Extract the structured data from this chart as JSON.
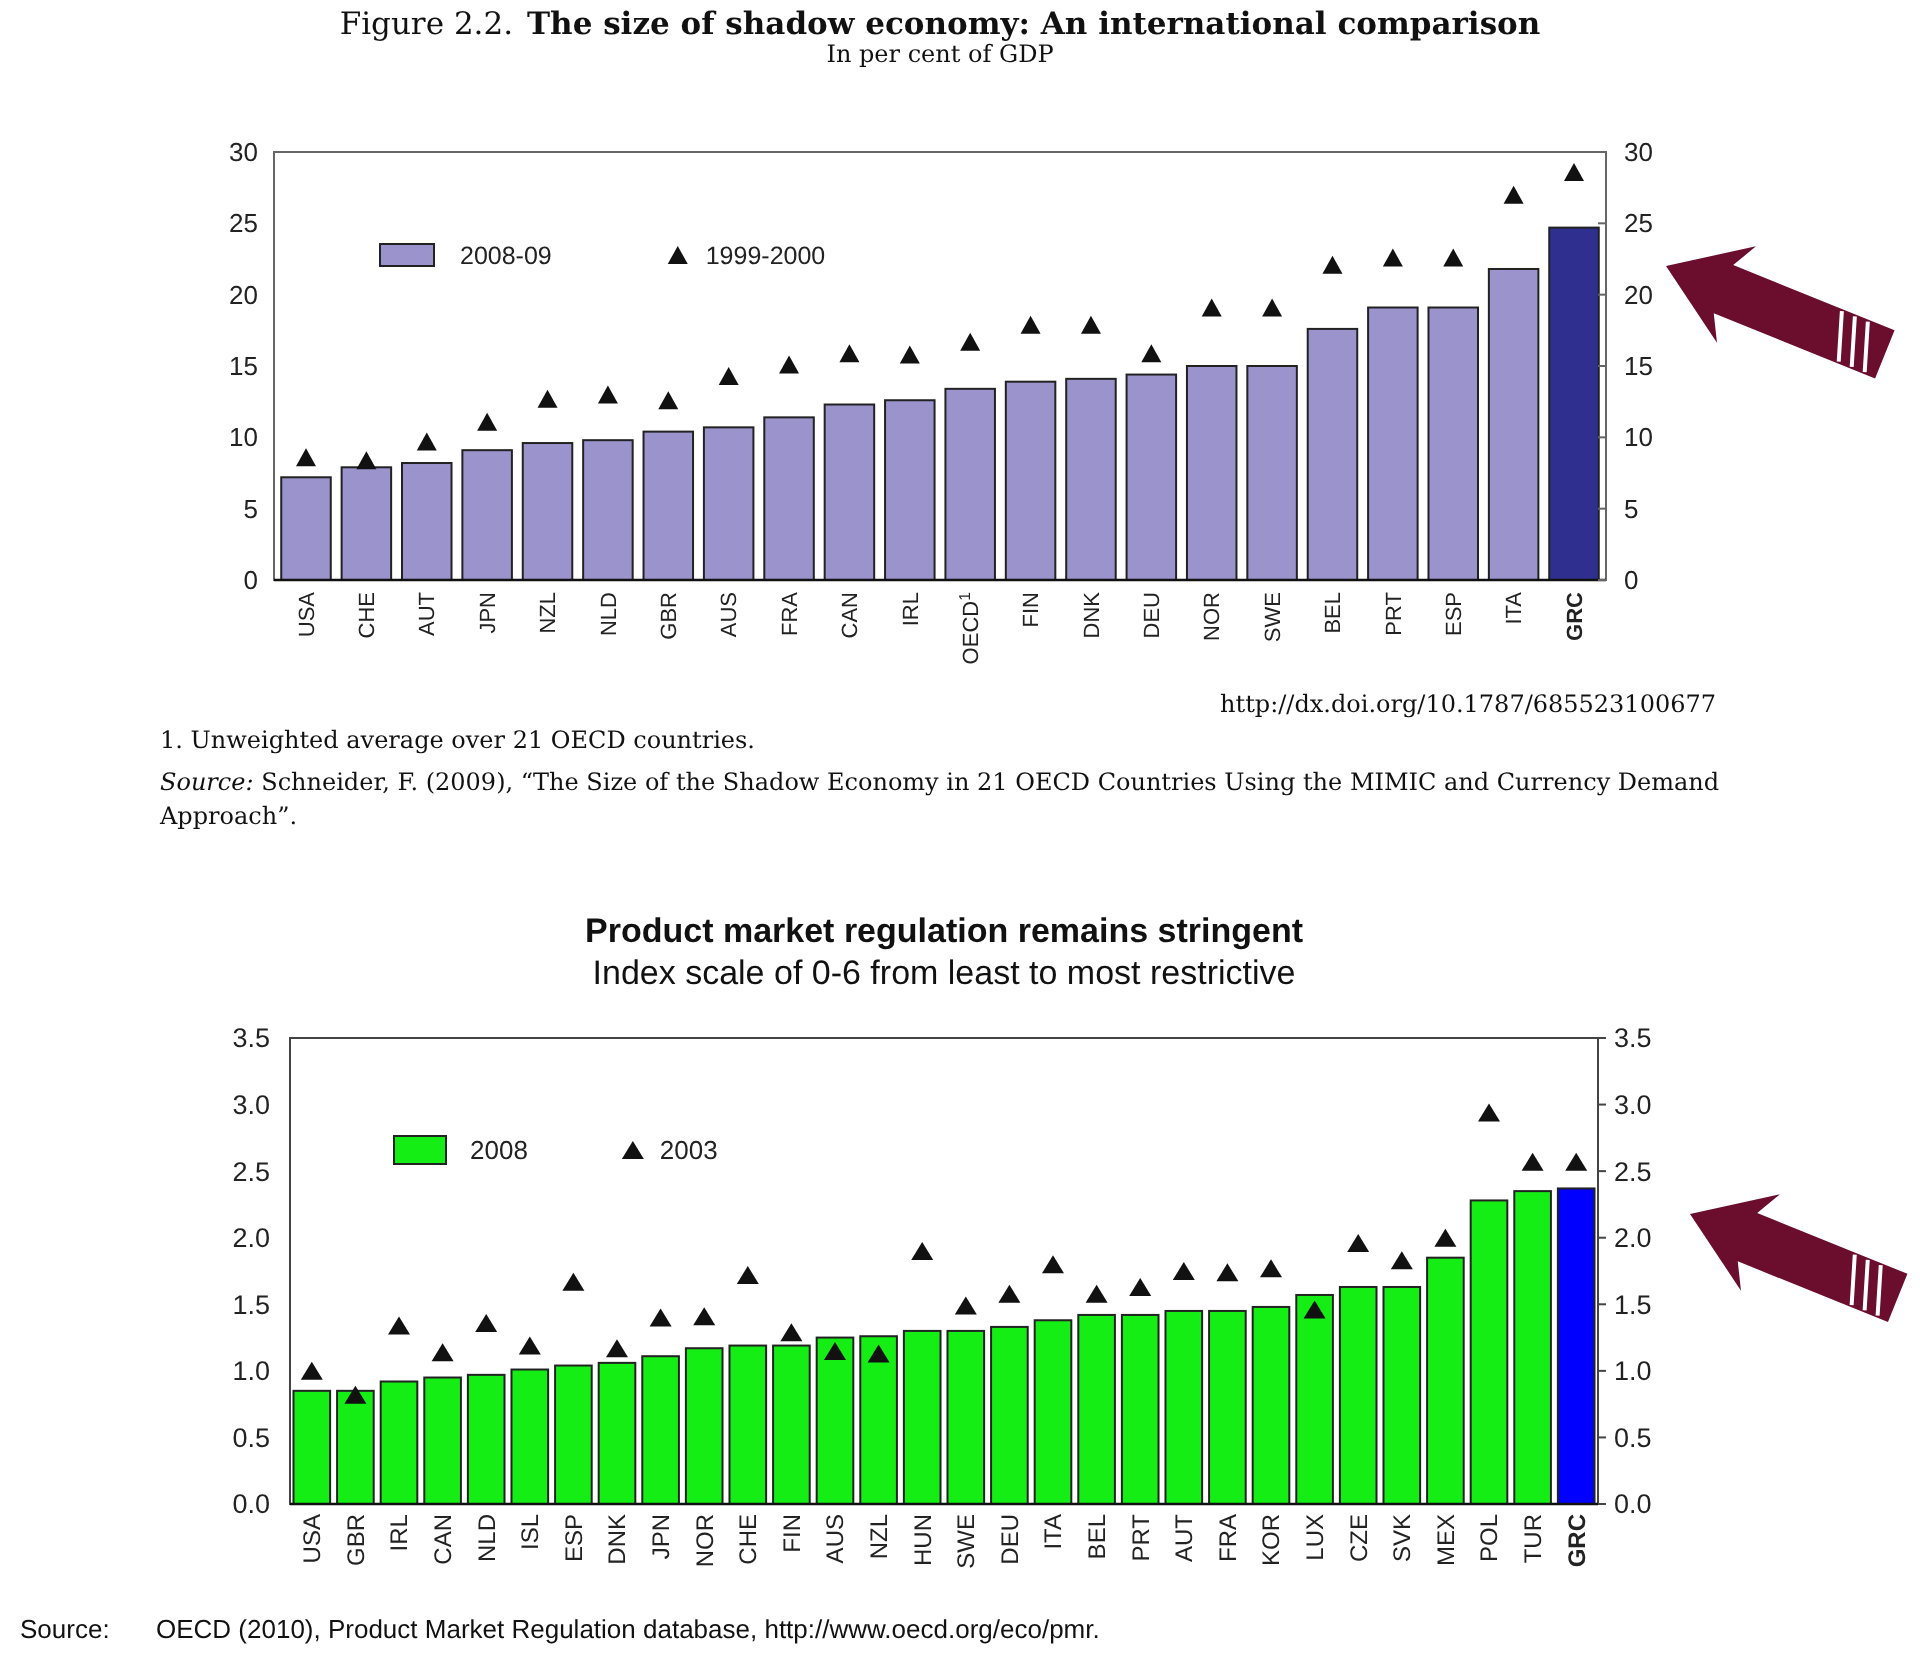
{
  "chart_data": [
    {
      "type": "bar",
      "title": "Figure 2.2. The size of shadow economy: An international comparison",
      "subtitle": "In per cent of GDP",
      "categories": [
        "USA",
        "CHE",
        "AUT",
        "JPN",
        "NZL",
        "NLD",
        "GBR",
        "AUS",
        "FRA",
        "CAN",
        "IRL",
        "OECD$^{1}$",
        "FIN",
        "DNK",
        "DEU",
        "NOR",
        "SWE",
        "BEL",
        "PRT",
        "ESP",
        "ITA",
        "GRC"
      ],
      "series": [
        {
          "name": "2008-09",
          "color": "#9a93cc",
          "colors": [
            "#9a93cc",
            "#9a93cc",
            "#9a93cc",
            "#9a93cc",
            "#9a93cc",
            "#9a93cc",
            "#9a93cc",
            "#9a93cc",
            "#9a93cc",
            "#9a93cc",
            "#9a93cc",
            "#9a93cc",
            "#9a93cc",
            "#9a93cc",
            "#9a93cc",
            "#9a93cc",
            "#9a93cc",
            "#9a93cc",
            "#9a93cc",
            "#9a93cc",
            "#9a93cc",
            "#2f2f8f"
          ],
          "values": [
            7.2,
            7.9,
            8.2,
            9.1,
            9.6,
            9.8,
            10.4,
            10.7,
            11.4,
            12.3,
            12.6,
            13.4,
            13.9,
            14.1,
            14.4,
            15.0,
            15.0,
            17.6,
            19.1,
            19.1,
            21.8,
            24.7
          ]
        },
        {
          "name": "1999-2000",
          "type": "scatter",
          "marker": "triangle",
          "color": "#111111",
          "values": [
            8.6,
            8.4,
            9.7,
            11.1,
            12.7,
            13.0,
            12.6,
            14.3,
            15.1,
            15.9,
            15.8,
            16.7,
            17.9,
            17.9,
            15.9,
            19.1,
            19.1,
            22.1,
            22.6,
            22.6,
            27.0,
            28.6
          ]
        }
      ],
      "ylim": [
        0,
        30
      ],
      "yticks": [
        0,
        5,
        10,
        15,
        20,
        25,
        30
      ],
      "y2lim": [
        0,
        30
      ],
      "y2ticks": [
        0,
        5,
        10,
        15,
        20,
        25,
        30
      ],
      "legend": "top left",
      "annotations": [
        "http://dx.doi.org/10.1787/685523100677",
        "1. Unweighted average over 21 OECD countries.",
        "Source: Schneider, F. (2009), “The Size of the Shadow Economy in 21 OECD Countries Using the MIMIC and Currency Demand Approach”."
      ]
    },
    {
      "type": "bar",
      "title": "Product market regulation remains stringent",
      "subtitle": "Index scale of 0-6 from least to most restrictive",
      "categories": [
        "USA",
        "GBR",
        "IRL",
        "CAN",
        "NLD",
        "ISL",
        "ESP",
        "DNK",
        "JPN",
        "NOR",
        "CHE",
        "FIN",
        "AUS",
        "NZL",
        "HUN",
        "SWE",
        "DEU",
        "ITA",
        "BEL",
        "PRT",
        "AUT",
        "FRA",
        "KOR",
        "LUX",
        "CZE",
        "SVK",
        "MEX",
        "POL",
        "TUR",
        "GRC"
      ],
      "series": [
        {
          "name": "2008",
          "color": "#14ee14",
          "colors": [
            "#14ee14",
            "#14ee14",
            "#14ee14",
            "#14ee14",
            "#14ee14",
            "#14ee14",
            "#14ee14",
            "#14ee14",
            "#14ee14",
            "#14ee14",
            "#14ee14",
            "#14ee14",
            "#14ee14",
            "#14ee14",
            "#14ee14",
            "#14ee14",
            "#14ee14",
            "#14ee14",
            "#14ee14",
            "#14ee14",
            "#14ee14",
            "#14ee14",
            "#14ee14",
            "#14ee14",
            "#14ee14",
            "#14ee14",
            "#14ee14",
            "#14ee14",
            "#14ee14",
            "#0000ff"
          ],
          "values": [
            0.85,
            0.85,
            0.92,
            0.95,
            0.97,
            1.01,
            1.04,
            1.06,
            1.11,
            1.17,
            1.19,
            1.19,
            1.25,
            1.26,
            1.3,
            1.3,
            1.33,
            1.38,
            1.42,
            1.42,
            1.45,
            1.45,
            1.48,
            1.57,
            1.63,
            1.63,
            1.85,
            2.28,
            2.35,
            2.37
          ]
        },
        {
          "name": "2003",
          "type": "scatter",
          "marker": "triangle",
          "color": "#111111",
          "values": [
            1.0,
            0.82,
            1.34,
            1.14,
            1.36,
            1.19,
            1.67,
            1.17,
            1.4,
            1.41,
            1.72,
            1.29,
            1.15,
            1.13,
            1.9,
            1.49,
            1.58,
            1.8,
            1.58,
            1.63,
            1.75,
            1.74,
            1.77,
            1.46,
            1.96,
            1.83,
            2.0,
            2.94,
            2.57,
            2.57
          ]
        }
      ],
      "ylim": [
        0,
        3.5
      ],
      "yticks": [
        {
          "value": 0,
          "label": "0.0"
        },
        {
          "value": 0.5,
          "label": "0.5"
        },
        {
          "value": 1,
          "label": "1.0"
        },
        {
          "value": 1.5,
          "label": "1.5"
        },
        {
          "value": 2,
          "label": "2.0"
        },
        {
          "value": 2.5,
          "label": "2.5"
        },
        {
          "value": 3,
          "label": "3.0"
        },
        {
          "value": 3.5,
          "label": "3.5"
        }
      ],
      "y2lim": [
        0,
        3.5
      ],
      "y2ticks": [
        {
          "value": 0,
          "label": "0.0"
        },
        {
          "value": 0.5,
          "label": "0.5"
        },
        {
          "value": 1,
          "label": "1.0"
        },
        {
          "value": 1.5,
          "label": "1.5"
        },
        {
          "value": 2,
          "label": "2.0"
        },
        {
          "value": 2.5,
          "label": "2.5"
        },
        {
          "value": 3,
          "label": "3.0"
        },
        {
          "value": 3.5,
          "label": "3.5"
        }
      ],
      "legend": "top left",
      "annotations": [
        "Source: OECD (2010), Product Market Regulation database, http://www.oecd.org/eco/pmr."
      ]
    }
  ]
}
